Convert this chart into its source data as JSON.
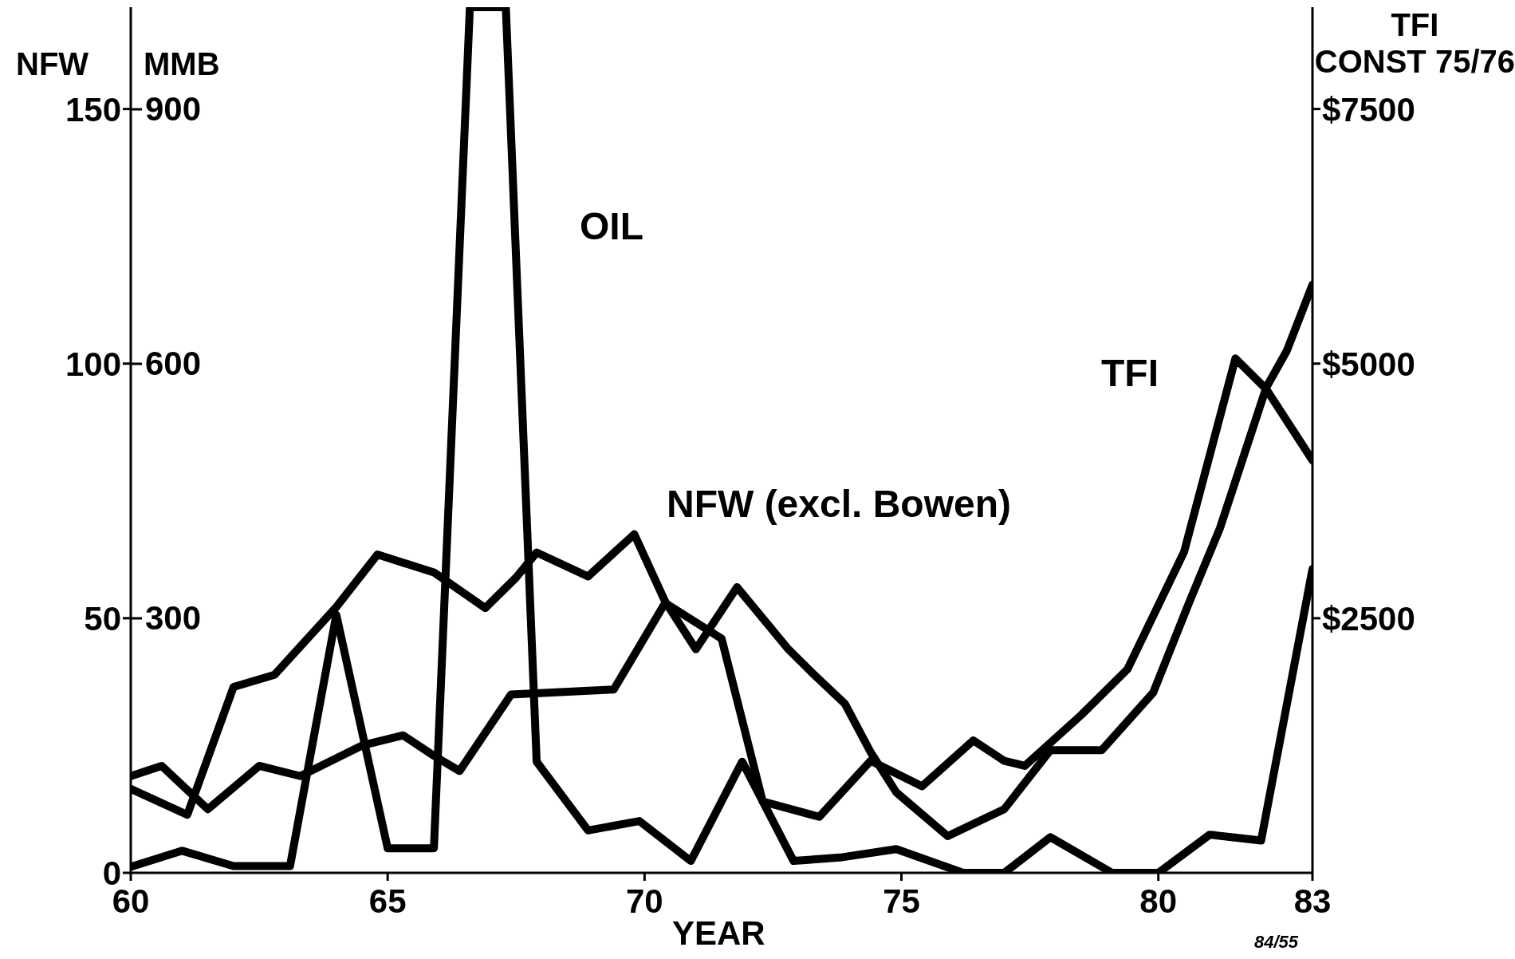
{
  "chart_data": {
    "type": "line",
    "xlabel": "YEAR",
    "ylabel": "NFW",
    "y2label": "MMB",
    "y3label": "TFI\nCONST 75/76",
    "xlim": [
      60,
      83
    ],
    "xticks": [
      60,
      65,
      70,
      75,
      80,
      83
    ],
    "ylim": [
      0,
      170
    ],
    "yticks": [
      0,
      50,
      100,
      150
    ],
    "y2lim": [
      0,
      1020
    ],
    "y2ticks": [
      300,
      600,
      900
    ],
    "y3lim": [
      0,
      8500
    ],
    "y3ticks": [
      {
        "value": 2500,
        "label": "$2500"
      },
      {
        "value": 5000,
        "label": "$5000"
      },
      {
        "value": 7500,
        "label": "$7500"
      }
    ],
    "marker": "none",
    "line_style": "solid",
    "annotations": [
      "84/55"
    ],
    "series": [
      {
        "name": "OIL",
        "color": "#000000",
        "axis": "y2",
        "x": [
          60,
          61,
          62,
          63.1,
          64,
          65,
          65.9,
          66.6,
          67.3,
          67.9,
          68.9,
          69.9,
          70.9,
          71.9,
          72.9,
          73.8,
          74.9,
          76.2,
          77,
          77.9,
          79.1,
          80,
          81,
          82,
          83
        ],
        "values": [
          7,
          26,
          8,
          8,
          304,
          29,
          29,
          1020,
          1020,
          131,
          50,
          61,
          14,
          131,
          14,
          18,
          28,
          0,
          0,
          42,
          0,
          0,
          45,
          38,
          358
        ]
      },
      {
        "name": "NFW (excl. Bowen)",
        "color": "#000000",
        "axis": "y",
        "x": [
          60,
          61.1,
          62,
          62.8,
          64,
          64.8,
          65.9,
          66.9,
          67.5,
          67.9,
          68.9,
          69.8,
          70.4,
          71,
          71.8,
          72.8,
          73.3,
          73.9,
          74.4,
          74.9,
          75.9,
          77,
          77.9,
          78.9,
          79.9,
          80.6,
          81.2,
          82.1,
          82.5,
          83
        ],
        "values": [
          16.5,
          11.4,
          36.5,
          38.9,
          52.2,
          62.5,
          59,
          52,
          58,
          62.9,
          58.2,
          66.5,
          53.3,
          43.9,
          56.1,
          43.9,
          38.9,
          33.2,
          23.7,
          15.8,
          7.2,
          12.5,
          24.1,
          24.1,
          35.4,
          53.1,
          67.7,
          95.3,
          102.5,
          115.5
        ]
      },
      {
        "name": "TFI",
        "color": "#000000",
        "axis": "y3",
        "x": [
          60,
          60.6,
          61.5,
          62.5,
          63.3,
          64.5,
          65.3,
          65.9,
          66.4,
          67.4,
          69.4,
          70.4,
          71.5,
          72.3,
          73.4,
          74.4,
          75.4,
          76.4,
          77,
          77.4,
          78.5,
          79.4,
          80.5,
          81.5,
          82.1,
          83
        ],
        "values": [
          950,
          1050,
          625,
          1050,
          950,
          1250,
          1350,
          1150,
          1000,
          1750,
          1800,
          2650,
          2300,
          700,
          550,
          1100,
          850,
          1300,
          1100,
          1050,
          1550,
          2000,
          3150,
          5050,
          4750,
          4050
        ]
      }
    ]
  }
}
